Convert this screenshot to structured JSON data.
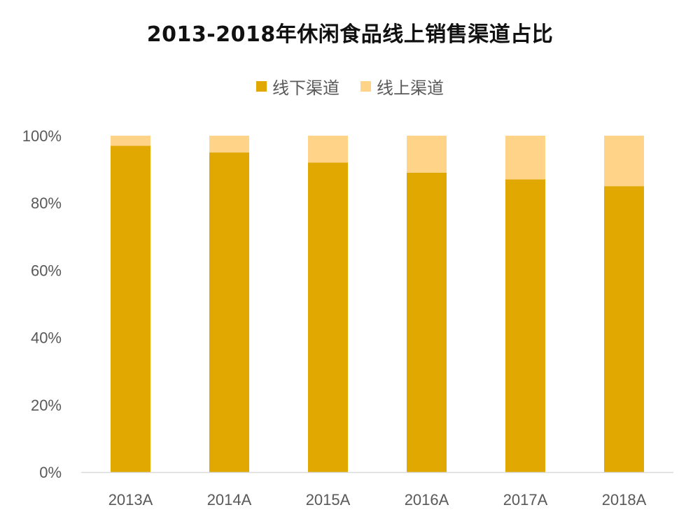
{
  "chart_data": {
    "type": "bar",
    "stacked": true,
    "title": "2013-2018年休闲食品线上销售渠道占比",
    "categories": [
      "2013A",
      "2014A",
      "2015A",
      "2016A",
      "2017A",
      "2018A"
    ],
    "series": [
      {
        "name": "线下渠道",
        "color": "#E0A800",
        "values": [
          97,
          95,
          92,
          89,
          87,
          85
        ]
      },
      {
        "name": "线上渠道",
        "color": "#FFD489",
        "values": [
          3,
          5,
          8,
          11,
          13,
          15
        ]
      }
    ],
    "ylim": [
      0,
      100
    ],
    "yticks": [
      0,
      20,
      40,
      60,
      80,
      100
    ],
    "ytick_labels": [
      "0%",
      "20%",
      "40%",
      "60%",
      "80%",
      "100%"
    ],
    "legend_position": "top-center",
    "grid": false,
    "xlabel": "",
    "ylabel": ""
  }
}
